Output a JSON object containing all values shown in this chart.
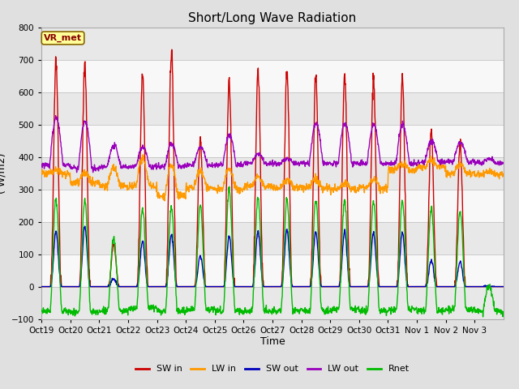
{
  "title": "Short/Long Wave Radiation",
  "xlabel": "Time",
  "ylabel": "( W/m2)",
  "ylim": [
    -100,
    800
  ],
  "yticks": [
    -100,
    0,
    100,
    200,
    300,
    400,
    500,
    600,
    700,
    800
  ],
  "xtick_labels": [
    "Oct 19",
    "Oct 20",
    "Oct 21",
    "Oct 22",
    "Oct 23",
    "Oct 24",
    "Oct 25",
    "Oct 26",
    "Oct 27",
    "Oct 28",
    "Oct 29",
    "Oct 30",
    "Oct 31",
    "Nov 1",
    "Nov 2",
    "Nov 3"
  ],
  "legend_labels": [
    "SW in",
    "LW in",
    "SW out",
    "LW out",
    "Rnet"
  ],
  "colors": {
    "SW_in": "#cc0000",
    "LW_in": "#ff9900",
    "SW_out": "#0000bb",
    "LW_out": "#9900bb",
    "Rnet": "#00bb00"
  },
  "background_color": "#e0e0e0",
  "plot_bg_color": "#ffffff",
  "grid_color": "#cccccc",
  "band_color_odd": "#e8e8e8",
  "band_color_even": "#f8f8f8",
  "annotation_text": "VR_met",
  "annotation_box_color": "#ffff99",
  "annotation_border_color": "#886600",
  "n_days": 16,
  "points_per_day": 96,
  "SW_in_peaks": [
    700,
    690,
    130,
    660,
    730,
    460,
    625,
    670,
    660,
    645,
    645,
    640,
    640,
    480,
    440,
    0
  ],
  "SW_out_peaks": [
    170,
    185,
    25,
    140,
    160,
    95,
    155,
    170,
    175,
    170,
    170,
    165,
    165,
    80,
    75,
    0
  ],
  "LW_in_base": [
    350,
    320,
    310,
    310,
    280,
    305,
    300,
    310,
    305,
    305,
    300,
    305,
    360,
    370,
    350,
    345
  ],
  "LW_in_day_bump": [
    10,
    30,
    55,
    85,
    95,
    50,
    60,
    30,
    25,
    25,
    20,
    25,
    20,
    20,
    25,
    10
  ],
  "LW_out_base": [
    375,
    365,
    370,
    370,
    370,
    375,
    375,
    380,
    380,
    380,
    380,
    380,
    380,
    385,
    385,
    380
  ],
  "LW_out_day_peak": [
    520,
    510,
    435,
    430,
    440,
    430,
    465,
    410,
    395,
    505,
    505,
    500,
    500,
    450,
    445,
    395
  ],
  "Rnet_night": [
    -75,
    -80,
    -75,
    -65,
    -75,
    -70,
    -75,
    -75,
    -75,
    -75,
    -70,
    -75,
    -70,
    -75,
    -70,
    -75
  ],
  "Rnet_day_peak": [
    270,
    265,
    150,
    240,
    245,
    250,
    300,
    270,
    265,
    265,
    265,
    265,
    265,
    240,
    235,
    0
  ],
  "title_fontsize": 11,
  "axis_fontsize": 9,
  "tick_fontsize": 7.5
}
